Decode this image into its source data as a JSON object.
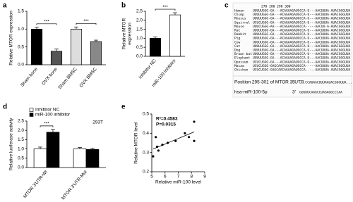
{
  "chart_data": [
    {
      "panel": "a",
      "type": "bar",
      "ylabel": "Relative MTOR expression",
      "categories": [
        "Sham bone",
        "OVX bone",
        "Sham BMSC",
        "OVX BMSC"
      ],
      "values": [
        1.0,
        0.38,
        1.0,
        0.65
      ],
      "errors": [
        0.05,
        0.06,
        0.06,
        0.04
      ],
      "colors": [
        "#000000",
        "#555555",
        "#dddddd",
        "#888888"
      ],
      "ylim": [
        0,
        1.5
      ],
      "yticks": [
        {
          "value": 0,
          "label": "0.0"
        },
        0.5,
        {
          "value": 1,
          "label": "1.0"
        },
        1.5
      ],
      "significance": [
        "***",
        "***"
      ]
    },
    {
      "panel": "b",
      "type": "bar",
      "ylabel": [
        "Relative MTOR",
        "expression"
      ],
      "categories": [
        "Inhibitor NC",
        "miR-100 inhibitor"
      ],
      "values": [
        1.0,
        2.3
      ],
      "errors": [
        0.08,
        0.12
      ],
      "colors": [
        "#000000",
        "#ffffff"
      ],
      "ylim": [
        0,
        2.5
      ],
      "yticks": [
        {
          "value": 0,
          "label": "0.0"
        },
        0.5,
        {
          "value": 1,
          "label": "1.0"
        },
        1.5,
        {
          "value": 2,
          "label": "2.0"
        },
        2.5
      ],
      "significance": [
        "***"
      ]
    },
    {
      "panel": "d",
      "type": "bar",
      "ylabel": "Relative luciferase activity",
      "categories": [
        "MTOR 3'UTR-Wt",
        "MTOR 3'UTR-Mut"
      ],
      "series": [
        {
          "name": "Inhibitor NC",
          "color": "#ffffff",
          "values": [
            1.0,
            1.0
          ],
          "errors": [
            0.1,
            0.08
          ]
        },
        {
          "name": "miR-100 inhibitor",
          "color": "#000000",
          "values": [
            1.9,
            0.97
          ],
          "errors": [
            0.15,
            0.07
          ]
        }
      ],
      "ylim": [
        0,
        2.5
      ],
      "yticks": [
        {
          "value": 0,
          "label": "0.0"
        },
        0.5,
        {
          "value": 1,
          "label": "1.0"
        },
        1.5,
        {
          "value": 2,
          "label": "2.0"
        },
        2.5
      ],
      "legend": "top-left",
      "annotation": "293T",
      "significance": [
        "***"
      ]
    },
    {
      "panel": "e",
      "type": "scatter",
      "xlabel": "Relative miR-100 level",
      "ylabel": "Relative MTOR level",
      "x": [
        5.1,
        5.3,
        5.4,
        5.5,
        5.8,
        6.2,
        6.8,
        7.5,
        7.8,
        8.2,
        8.2
      ],
      "values": [
        0.28,
        0.38,
        0.33,
        0.31,
        0.34,
        0.35,
        0.36,
        0.4,
        0.38,
        0.46,
        0.36
      ],
      "color": "#000000",
      "xlim": [
        5,
        9
      ],
      "xticks": [
        5,
        6,
        7,
        8,
        9
      ],
      "ylim": [
        0.2,
        0.5
      ],
      "yticks": [
        0.2,
        0.3,
        0.4,
        0.5
      ],
      "annotations": [
        "R²=0.4583",
        "P=0.0315"
      ],
      "trendline": true
    }
  ],
  "alignment": {
    "panel": "c",
    "header": "270        280        290        300",
    "rows": [
      {
        "name": "Human",
        "seq": "UUUUUGGG-GA---ACAGAAGAUGCCA-U---AACUUUA-AUACGGGUUA",
        "color": "#3a3aa0"
      },
      {
        "name": "Chimp",
        "seq": "UUUUUGGG-GA---ACAGAAGAUGCCA-U---AACUUUA-AUACGGGUUA",
        "color": "#3a3aa0"
      },
      {
        "name": "Rhesus",
        "seq": "UUUUUGGG-GA---ACAGAAGAUGCCA-U---AACUUUA-AUACGGGUUA",
        "color": "#3a3aa0"
      },
      {
        "name": "Squirrel",
        "seq": "UCUCUGGG-GA---ACAGAAGAUGCCA-U---AACUUUA-AUACGGGUUA",
        "color": "#3a3ad0"
      },
      {
        "name": "Mouse",
        "seq": "UUUCUGGG-AA---ACAGAAGAUGCCA-----AACUU-A-AUACGGGUUA",
        "color": "#6a3a90"
      },
      {
        "name": "Rat",
        "seq": "UUUUUGGG-GA---ACAGAAGAUGCCA-U---AACUUUA-AUACGGGUUA",
        "color": "#3a3aa0"
      },
      {
        "name": "Rabbit",
        "seq": "UUUUUGGG-GA---ACAGAAGAUGCCA-U---AACUUUA-AUACGGGUUA",
        "color": "#6a3a90"
      },
      {
        "name": "Pig",
        "seq": "UUUUUGGG-GA---ACAGAAGAUGCCA-U---AACUUUA-AUACGGGUUA",
        "color": "#3a3aa0"
      },
      {
        "name": "Cow",
        "seq": "UUUUUGGG-GA---ACAGAAGAUGCCA-U---AACUUUA-AUACGGGUUA",
        "color": "#3a3aa0"
      },
      {
        "name": "Cat",
        "seq": "UUUUUGGG-GA---ACAGAAGAUGCCA-U---AACUUUA-AUACGGGUUA",
        "color": "#3a3aa0"
      },
      {
        "name": "Dog",
        "seq": "UUUUUGGG-GA---ACAGAAGAUGCCA-U---AACUUUA-AUACGGGUUA",
        "color": "#3a3aa0"
      },
      {
        "name": "Brown bat",
        "seq": "UUUUUGGG-GA---ACAGAAGAUGCCA-U---AACUUUA-AUACGGGUUA",
        "color": "#3a3aa0"
      },
      {
        "name": "Elephant",
        "seq": "UUUUUGGG-GA---ACAGAAGAUGCCA-U---AACUUUA-AUACGGGUUA",
        "color": "#6a3a90"
      },
      {
        "name": "Opossum",
        "seq": "UCUCUGGG-GA---ACAGAAGAUGCCA-U---AACUUUA-AUACGGGUUA",
        "color": "#6a3a90"
      },
      {
        "name": "Macaw",
        "seq": "UCUCUGGG-GAGCAACAGAAGAUGCCA-----AACUUUA-AUACGGGUUA",
        "color": "#c03030"
      },
      {
        "name": "Chicken",
        "seq": "UCUCUGGG-GAGCAACAGAAGAUGCCA-----AACUUUA-AUACGGGUUA",
        "color": "#c03030"
      }
    ],
    "target": {
      "label": "Position 295-301 of MTOR 3' UTR",
      "end": "5'",
      "seq": "...CCAUAACUUUAAUACGGGUUA..."
    },
    "mirna": {
      "label": "hsa-miR-100-5p",
      "end": "3'",
      "seq": "GUGUUCAAGCCUAGAUGCCCAA"
    }
  }
}
